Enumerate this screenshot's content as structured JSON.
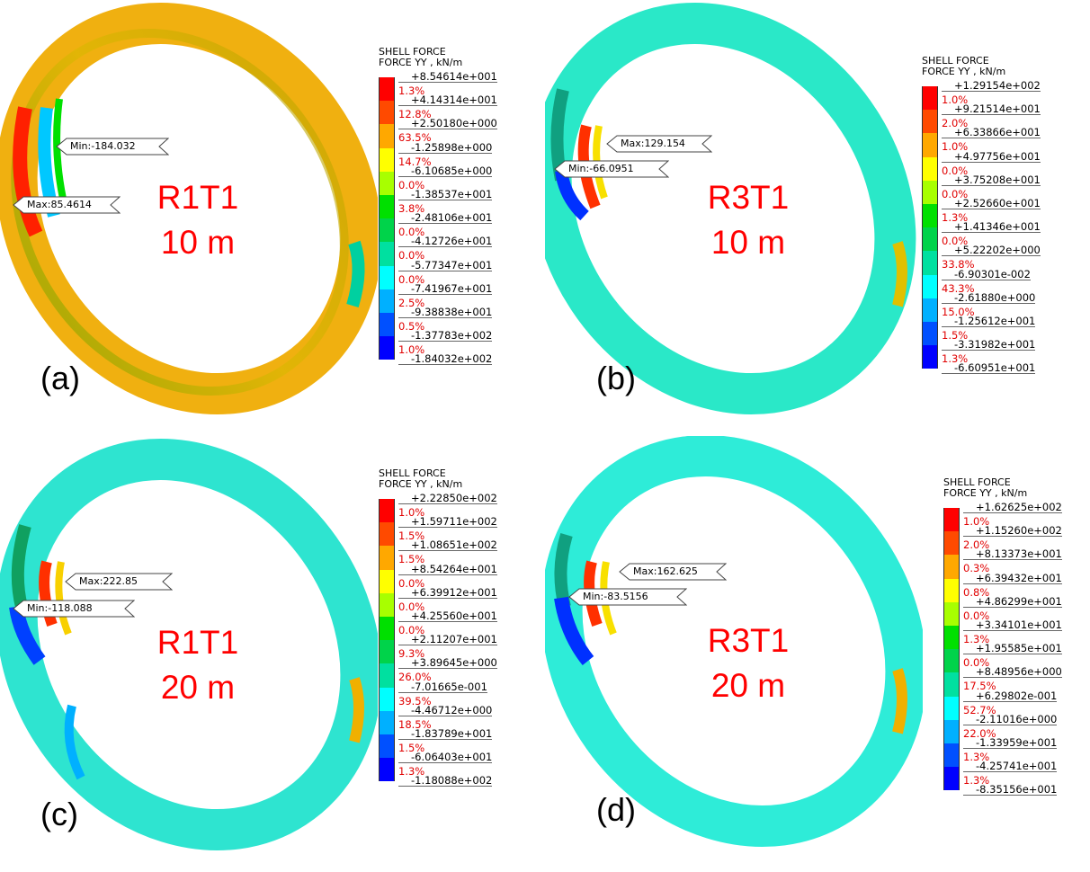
{
  "colors": {
    "label": "#ff0000",
    "percent": "#e00000",
    "scale": [
      "#ff0000",
      "#ff4a00",
      "#ffa800",
      "#ffff00",
      "#a8ff00",
      "#00e000",
      "#00d34a",
      "#00e0a0",
      "#00ffff",
      "#00b0ff",
      "#0050ff",
      "#0000ff"
    ]
  },
  "legend_common": {
    "line1": "SHELL FORCE",
    "line2": "FORCE YY , kN/m"
  },
  "panels": [
    {
      "letter": "(a)",
      "case": "R1T1",
      "depth": "10 m",
      "max_label": "Max:85.4614",
      "min_label": "Min:-184.032",
      "levels": [
        "+8.54614e+001",
        "+4.14314e+001",
        "+2.50180e+000",
        "-1.25898e+000",
        "-6.10685e+000",
        "-1.38537e+001",
        "-2.48106e+001",
        "-4.12726e+001",
        "-5.77347e+001",
        "-7.41967e+001",
        "-9.38838e+001",
        "-1.37783e+002",
        "-1.84032e+002"
      ],
      "percents": [
        "1.3%",
        "12.8%",
        "63.5%",
        "14.7%",
        "0.0%",
        "3.8%",
        "0.0%",
        "0.0%",
        "0.0%",
        "2.5%",
        "0.5%",
        "1.0%"
      ]
    },
    {
      "letter": "(b)",
      "case": "R3T1",
      "depth": "10 m",
      "max_label": "Max:129.154",
      "min_label": "Min:-66.0951",
      "levels": [
        "+1.29154e+002",
        "+9.21514e+001",
        "+6.33866e+001",
        "+4.97756e+001",
        "+3.75208e+001",
        "+2.52660e+001",
        "+1.41346e+001",
        "+5.22202e+000",
        "-6.90301e-002",
        "-2.61880e+000",
        "-1.25612e+001",
        "-3.31982e+001",
        "-6.60951e+001"
      ],
      "percents": [
        "1.0%",
        "2.0%",
        "1.0%",
        "0.0%",
        "0.0%",
        "1.3%",
        "0.0%",
        "33.8%",
        "43.3%",
        "15.0%",
        "1.5%",
        "1.3%"
      ]
    },
    {
      "letter": "(c)",
      "case": "R1T1",
      "depth": "20 m",
      "max_label": "Max:222.85",
      "min_label": "Min:-118.088",
      "levels": [
        "+2.22850e+002",
        "+1.59711e+002",
        "+1.08651e+002",
        "+8.54264e+001",
        "+6.39912e+001",
        "+4.25560e+001",
        "+2.11207e+001",
        "+3.89645e+000",
        "-7.01665e-001",
        "-4.46712e+000",
        "-1.83789e+001",
        "-6.06403e+001",
        "-1.18088e+002"
      ],
      "percents": [
        "1.0%",
        "1.5%",
        "1.5%",
        "0.0%",
        "0.0%",
        "0.0%",
        "9.3%",
        "26.0%",
        "39.5%",
        "18.5%",
        "1.5%",
        "1.3%"
      ]
    },
    {
      "letter": "(d)",
      "case": "R3T1",
      "depth": "20 m",
      "max_label": "Max:162.625",
      "min_label": "Min:-83.5156",
      "levels": [
        "+1.62625e+002",
        "+1.15260e+002",
        "+8.13373e+001",
        "+6.39432e+001",
        "+4.86299e+001",
        "+3.34101e+001",
        "+1.95585e+001",
        "+8.48956e+000",
        "+6.29802e-001",
        "-2.11016e+000",
        "-1.33959e+001",
        "-4.25741e+001",
        "-8.35156e+001"
      ],
      "percents": [
        "1.0%",
        "2.0%",
        "0.3%",
        "0.8%",
        "0.0%",
        "1.3%",
        "0.0%",
        "17.5%",
        "52.7%",
        "22.0%",
        "1.3%",
        "1.3%"
      ]
    }
  ]
}
